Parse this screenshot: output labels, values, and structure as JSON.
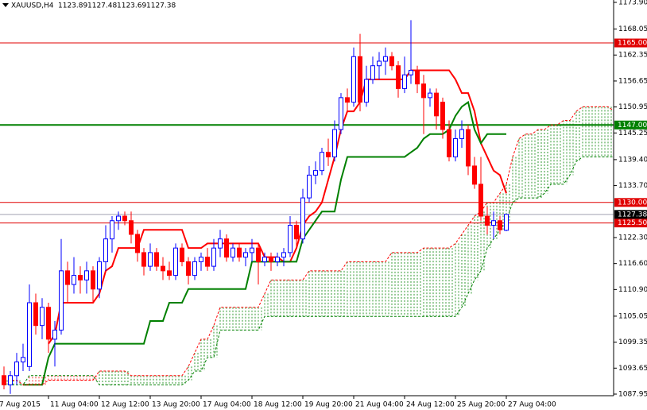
{
  "chart_data": {
    "type": "candlestick",
    "title": "XAUUSD,H4",
    "categories": [
      "7 Aug 2015",
      null,
      null,
      null,
      null,
      null,
      null,
      "11 Aug 04:00",
      null,
      null,
      null,
      null,
      null,
      null,
      null,
      "12 Aug 12:00",
      null,
      null,
      null,
      null,
      null,
      null,
      null,
      "13 Aug 20:00",
      null,
      null,
      null,
      null,
      null,
      null,
      null,
      "17 Aug 04:00",
      null,
      null,
      null,
      null,
      null,
      null,
      null,
      "18 Aug 12:00",
      null,
      null,
      null,
      null,
      null,
      null,
      null,
      "19 Aug 20:00",
      null,
      null,
      null,
      null,
      null,
      null,
      null,
      "21 Aug 04:00",
      null,
      null,
      null,
      null,
      null,
      null,
      null,
      "24 Aug 12:00",
      null,
      null,
      null,
      null,
      null,
      null,
      null,
      "25 Aug 20:00",
      null,
      null,
      null,
      null,
      null,
      null,
      null,
      "27 Aug 04:00",
      null,
      null,
      null,
      null,
      null,
      null,
      null,
      null,
      null,
      null,
      null,
      null,
      null,
      null,
      null,
      null,
      null
    ],
    "open": [
      1092,
      1090,
      1092,
      1095,
      1094,
      1108,
      1103,
      1107,
      1100,
      1102,
      1115,
      1112,
      1114,
      1113,
      1115,
      1111,
      1117,
      1122,
      1126,
      1127,
      1126,
      1123,
      1119,
      1116,
      1119,
      1116,
      1115,
      1114,
      1120,
      1117,
      1114,
      1117,
      1118,
      1116,
      1120,
      1122,
      1118,
      1120,
      1118,
      1119,
      1120,
      1117,
      1118,
      1117,
      1118,
      1119,
      1125,
      1122,
      1131,
      1136,
      1137,
      1141,
      1140,
      1146,
      1153,
      1152,
      1162,
      1152,
      1157,
      1160,
      1161,
      1162,
      1160,
      1155,
      1158,
      1159,
      1156,
      1153,
      1154,
      1152,
      1146,
      1140,
      1144,
      1146,
      1138,
      1134,
      1127,
      1125,
      1126,
      1123.89,
      null,
      null,
      null,
      null,
      null,
      null,
      null,
      null,
      null,
      null,
      null,
      null,
      null,
      null,
      null,
      null,
      null
    ],
    "high": [
      1094,
      1093,
      1097,
      1099,
      1112,
      1110,
      1109,
      1108,
      1104,
      1122,
      1117,
      1118,
      1116,
      1117,
      1116,
      1118,
      1125,
      1127,
      1128,
      1128,
      1128,
      1124,
      1120,
      1121,
      1120,
      1118,
      1117,
      1121,
      1121,
      1118,
      1118,
      1119,
      1120,
      1122,
      1124,
      1123,
      1121,
      1121,
      1120,
      1122,
      1121,
      1119,
      1119,
      1119,
      1120,
      1127,
      1126,
      1133,
      1138,
      1139,
      1142,
      1144,
      1148,
      1154,
      1155,
      1164,
      1167,
      1160,
      1162,
      1163,
      1164,
      1163,
      1161,
      1162,
      1170,
      1160,
      1158,
      1155,
      1155,
      1153,
      1148,
      1146,
      1148,
      1147,
      1140,
      1140,
      1129,
      1128,
      1127,
      1127.48,
      null,
      null,
      null,
      null,
      null,
      null,
      null,
      null,
      null,
      null,
      null,
      null,
      null,
      null,
      null,
      null,
      null
    ],
    "low": [
      1089,
      1088,
      1090,
      1093,
      1093,
      1101,
      1100,
      1097,
      1094,
      1101,
      1108,
      1110,
      1110,
      1110,
      1108,
      1109,
      1115,
      1119,
      1124,
      1125,
      1121,
      1117,
      1114,
      1115,
      1115,
      1113,
      1113,
      1113,
      1116,
      1112,
      1113,
      1115,
      1115,
      1115,
      1118,
      1117,
      1117,
      1117,
      1116,
      1117,
      1112,
      1116,
      1115,
      1116,
      1116,
      1118,
      1120,
      1121,
      1130,
      1134,
      1136,
      1138,
      1139,
      1145,
      1150,
      1151,
      1150,
      1151,
      1156,
      1157,
      1158,
      1159,
      1153,
      1154,
      1156,
      1154,
      1145,
      1151,
      1146,
      1144,
      1139,
      1139,
      1142,
      1136,
      1133,
      1126,
      1123,
      1122,
      1123,
      1123.69,
      null,
      null,
      null,
      null,
      null,
      null,
      null,
      null,
      null,
      null,
      null,
      null,
      null,
      null,
      null,
      null,
      null
    ],
    "close": [
      1090,
      1092,
      1095,
      1096,
      1108,
      1103,
      1107,
      1100,
      1102,
      1115,
      1112,
      1114,
      1113,
      1115,
      1111,
      1117,
      1122,
      1126,
      1127,
      1126,
      1123,
      1119,
      1116,
      1119,
      1116,
      1115,
      1114,
      1120,
      1117,
      1114,
      1117,
      1118,
      1116,
      1120,
      1122,
      1118,
      1120,
      1118,
      1119,
      1120,
      1117,
      1118,
      1117,
      1118,
      1119,
      1125,
      1122,
      1131,
      1136,
      1137,
      1141,
      1140,
      1146,
      1153,
      1152,
      1162,
      1152,
      1157,
      1160,
      1161,
      1162,
      1160,
      1155,
      1158,
      1159,
      1156,
      1153,
      1154,
      1149,
      1146,
      1140,
      1144,
      1146,
      1138,
      1134,
      1127,
      1125,
      1126,
      1124,
      1127.38,
      null,
      null,
      null,
      null,
      null,
      null,
      null,
      null,
      null,
      null,
      null,
      null,
      null,
      null,
      null,
      null,
      null
    ],
    "up_color": "#0000ff",
    "down_color": "#ff0000",
    "series": [
      {
        "color": "#ff0000",
        "style": "solid",
        "values": [
          null,
          null,
          null,
          null,
          null,
          null,
          null,
          1099,
          1101,
          1108,
          1108,
          1108,
          1108,
          1108,
          1108,
          1110,
          1115,
          1116,
          1120,
          1120,
          1120,
          1120,
          1124,
          1124,
          1124,
          1124,
          1124,
          1124,
          1124,
          1120,
          1120,
          1120,
          1121,
          1121,
          1121,
          1121,
          1121,
          1121,
          1121,
          1121,
          1121,
          1118,
          1118,
          1118,
          1117,
          1117,
          1120,
          1125,
          1127,
          1128,
          1130,
          1135,
          1140,
          1146,
          1150,
          1150,
          1152,
          1157,
          1157,
          1157,
          1157,
          1157,
          1157,
          1157,
          1159,
          1159,
          1159,
          1159,
          1159,
          1159,
          1159,
          1157,
          1154,
          1154,
          1150,
          1143,
          1140,
          1137,
          1136,
          1132,
          null,
          null,
          null,
          null,
          null,
          null,
          null,
          null,
          null,
          null,
          null,
          null,
          null,
          null,
          null,
          null,
          null
        ]
      },
      {
        "color": "#008000",
        "style": "solid",
        "values": [
          null,
          null,
          null,
          1090,
          1090,
          1090,
          1090,
          1096,
          1099,
          1099,
          1099,
          1099,
          1099,
          1099,
          1099,
          1099,
          1099,
          1099,
          1099,
          1099,
          1099,
          1099,
          1099,
          1104,
          1104,
          1104,
          1108,
          1108,
          1108,
          1111,
          1111,
          1111,
          1111,
          1111,
          1111,
          1111,
          1111,
          1111,
          1111,
          1117,
          1117,
          1117,
          1117,
          1117,
          1117,
          1117,
          1117,
          1122,
          1124,
          1126,
          1128,
          1128,
          1128,
          1135,
          1140,
          1140,
          1140,
          1140,
          1140,
          1140,
          1140,
          1140,
          1140,
          1140,
          1141,
          1142,
          1144,
          1145,
          1145,
          1145,
          1146,
          1149,
          1151,
          1152,
          1146,
          1143,
          1145,
          1145,
          1145,
          1145,
          null,
          null,
          null,
          null,
          null,
          null,
          null,
          null,
          null,
          null,
          null,
          null,
          null,
          null,
          null,
          null,
          null
        ]
      },
      {
        "color": "#ff0000",
        "style": "dotted",
        "values": [
          1091,
          1091,
          1091,
          1090,
          1090,
          1090,
          1090,
          1091,
          1091,
          1091,
          1091,
          1091,
          1091,
          1091,
          1091,
          1093,
          1093,
          1093,
          1093,
          1093,
          1092,
          1092,
          1092,
          1092,
          1092,
          1092,
          1092,
          1092,
          1092,
          1094,
          1097,
          1100,
          1100,
          1103,
          1107,
          1107,
          1107,
          1107,
          1107,
          1107,
          1107,
          1110,
          1113,
          1113,
          1113,
          1113,
          1113,
          1113,
          1115,
          1115,
          1115,
          1115,
          1115,
          1115,
          1117,
          1117,
          1117,
          1117,
          1117,
          1117,
          1117,
          1119,
          1119,
          1119,
          1119,
          1119,
          1120,
          1120,
          1120,
          1120,
          1120,
          1121,
          1123,
          1125,
          1127,
          1128,
          1130,
          1130,
          1132,
          1134,
          1140,
          1144,
          1145,
          1145,
          1146,
          1146,
          1147,
          1147,
          1148,
          1148,
          1150,
          1151,
          1151,
          1151,
          1151,
          1151,
          1150
        ]
      },
      {
        "color": "#008000",
        "style": "dotted",
        "values": [
          1090,
          1090,
          1090,
          1090,
          1092,
          1092,
          1092,
          1092,
          1092,
          1092,
          1092,
          1092,
          1092,
          1092,
          1092,
          1090,
          1090,
          1090,
          1090,
          1090,
          1090,
          1090,
          1090,
          1090,
          1090,
          1090,
          1090,
          1090,
          1090,
          1091,
          1093,
          1093,
          1096,
          1096,
          1102,
          1102,
          1102,
          1102,
          1102,
          1102,
          1102,
          1105,
          1105,
          1105,
          1105,
          1105,
          1105,
          1105,
          1105,
          1105,
          1105,
          1105,
          1105,
          1105,
          1105,
          1105,
          1105,
          1105,
          1105,
          1105,
          1105,
          1105,
          1105,
          1105,
          1105,
          1105,
          1105,
          1105,
          1105,
          1105,
          1105,
          1105,
          1107,
          1110,
          1113,
          1115,
          1120,
          1122,
          1124,
          1126,
          1130,
          1131,
          1131,
          1131,
          1131,
          1132,
          1134,
          1134,
          1134,
          1136,
          1139,
          1140,
          1140,
          1140,
          1140,
          1140,
          1140
        ]
      }
    ],
    "levels": [
      {
        "value": 1165,
        "label": "1165.00",
        "color": "#e00000"
      },
      {
        "value": 1147,
        "label": "1147.00",
        "color": "#008000"
      },
      {
        "value": 1130,
        "label": "1130.00",
        "color": "#e00000"
      },
      {
        "value": 1125.5,
        "label": "1125.50",
        "color": "#e00000"
      }
    ],
    "ylim": [
      1087.95,
      1173.9
    ],
    "yticks": [
      {
        "value": 1173.9,
        "label": "1173.90"
      },
      1168.05,
      1162.35,
      1156.65,
      1150.95,
      1145.25,
      {
        "value": 1139.4,
        "label": "1139.40"
      },
      {
        "value": 1133.7,
        "label": "1133.70"
      },
      {
        "value": 1122.3,
        "label": "1122.30"
      },
      {
        "value": 1116.6,
        "label": "1116.60"
      },
      {
        "value": 1110.9,
        "label": "1110.90"
      },
      1105.05,
      1099.35,
      1093.65,
      1087.95
    ]
  }
}
